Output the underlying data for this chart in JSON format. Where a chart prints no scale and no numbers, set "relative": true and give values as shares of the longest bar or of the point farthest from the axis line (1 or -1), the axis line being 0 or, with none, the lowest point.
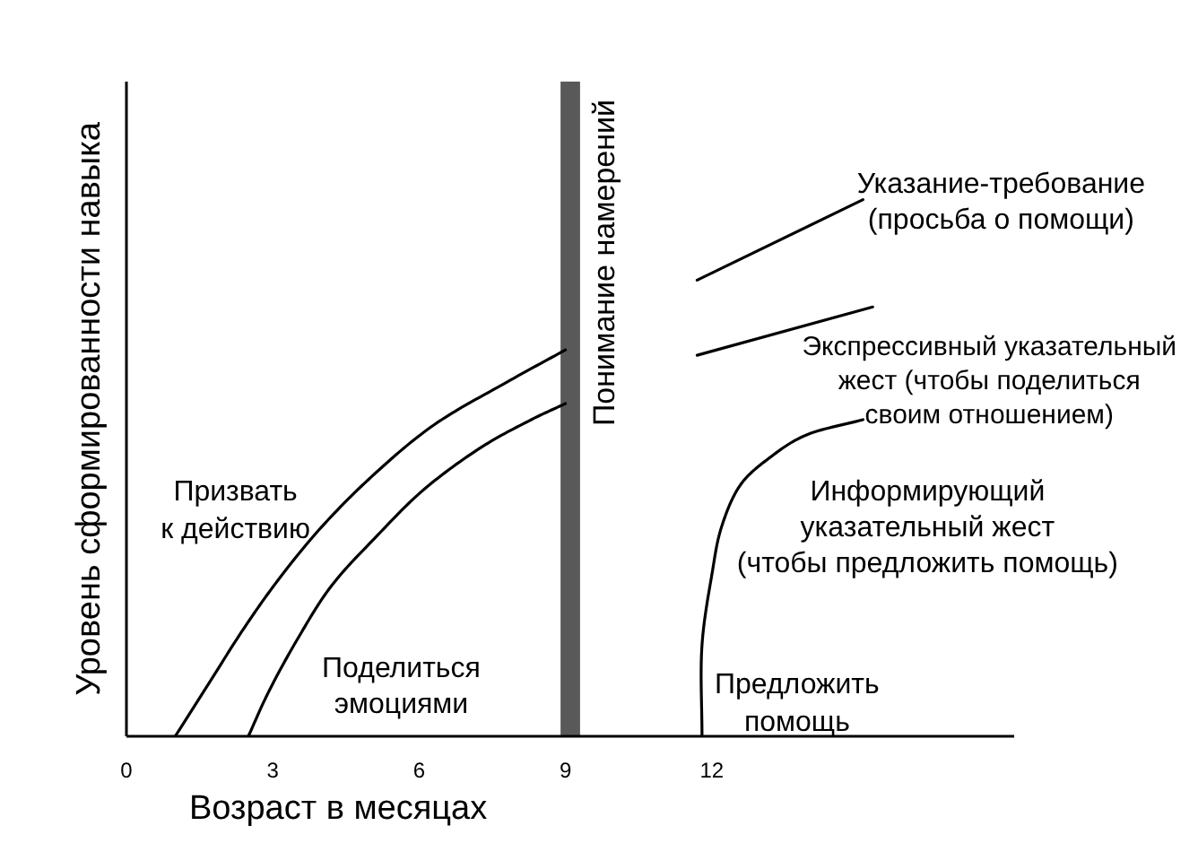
{
  "chart_data": {
    "type": "line",
    "relative": true,
    "xlabel": "Возраст в месяцах",
    "ylabel": "Уровень сформированности навыка",
    "xlim": [
      0,
      18.2
    ],
    "xticks": [
      0,
      3,
      6,
      9,
      12
    ],
    "series": [
      {
        "name": "Призвать\nк действию",
        "color": "#000000",
        "x": [
          1.0,
          1.7,
          2.4,
          3.1,
          4.0,
          5.1,
          6.3,
          7.8,
          9.0
        ],
        "values": [
          0,
          0.1,
          0.2,
          0.29,
          0.39,
          0.49,
          0.58,
          0.66,
          0.72
        ]
      },
      {
        "name": "Поделиться\nэмоциями",
        "color": "#000000",
        "x": [
          2.5,
          2.9,
          3.5,
          4.2,
          5.1,
          6.1,
          7.3,
          8.3,
          9.0
        ],
        "values": [
          0,
          0.08,
          0.18,
          0.28,
          0.37,
          0.46,
          0.54,
          0.59,
          0.62
        ]
      },
      {
        "name": "Указание-требование\n(просьба о помощи)",
        "color": "#000000",
        "x": [
          11.7,
          15.1
        ],
        "values": [
          0.85,
          1.0
        ]
      },
      {
        "name": "Экспрессивный указательный\nжест (чтобы поделиться\nсвоим отношением)",
        "color": "#000000",
        "x": [
          11.7,
          15.3
        ],
        "values": [
          0.71,
          0.8
        ]
      },
      {
        "name": "Информирующий\nуказательный жест\n(чтобы предложить помощь)",
        "color": "#000000",
        "x": [
          11.8,
          11.8,
          12.0,
          12.2,
          12.6,
          13.2,
          13.9,
          15.1
        ],
        "values": [
          0,
          0.17,
          0.3,
          0.39,
          0.47,
          0.52,
          0.56,
          0.59
        ]
      }
    ],
    "bands": [
      {
        "axis": "x",
        "from": 8.9,
        "to": 9.3,
        "label": "Понимание намерений",
        "color": "#595959"
      }
    ],
    "annotations": [
      {
        "text": "Предложить\nпомощь",
        "x": 11.8,
        "y": 0
      }
    ]
  }
}
